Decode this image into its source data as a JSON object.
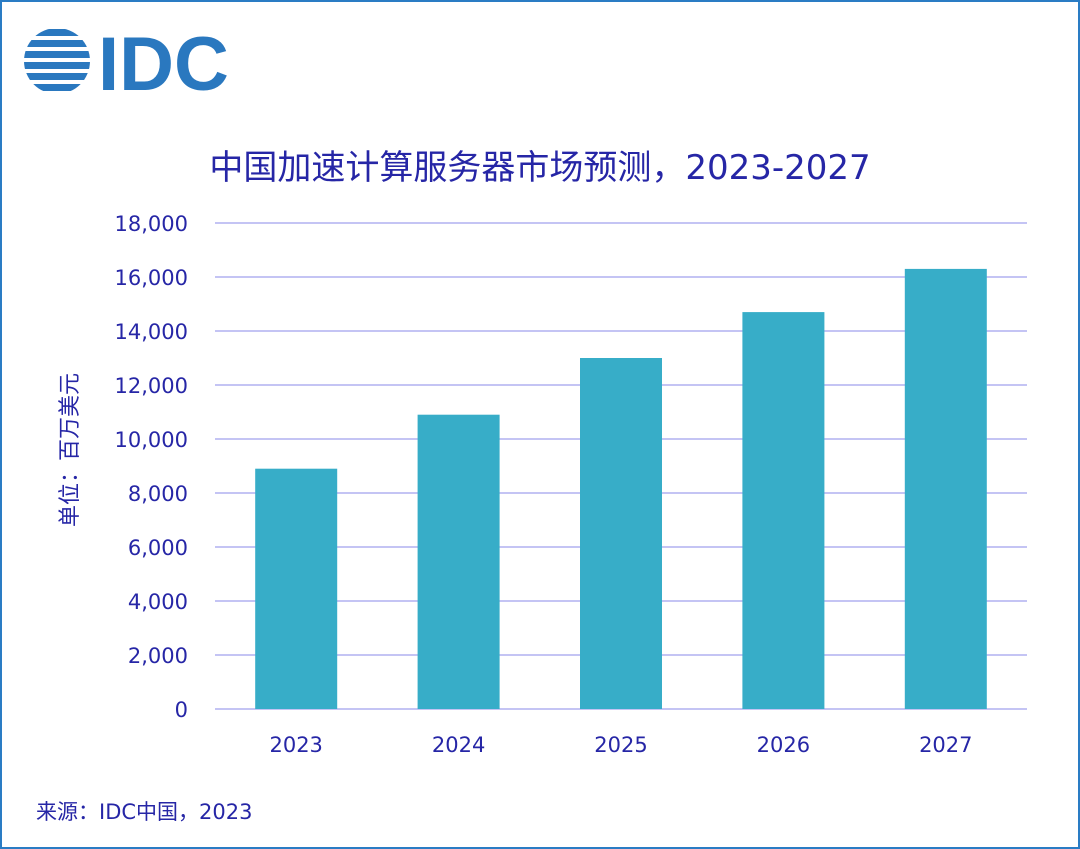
{
  "logo_text": "IDC",
  "colors": {
    "bar": "#37adc8",
    "grid": "#c4c4f4",
    "text": "#2626a6",
    "frame": "#2a7cc4",
    "logo": "#2a78bf"
  },
  "chart_data": {
    "type": "bar",
    "title": "中国加速计算服务器市场预测，2023-2027",
    "ylabel": "单位：百万美元",
    "xlabel": "",
    "categories": [
      "2023",
      "2024",
      "2025",
      "2026",
      "2027"
    ],
    "values": [
      8900,
      10900,
      13000,
      14700,
      16300
    ],
    "ylim": [
      0,
      18000
    ],
    "yticks": [
      "0",
      "2,000",
      "4,000",
      "6,000",
      "8,000",
      "10,000",
      "12,000",
      "14,000",
      "16,000",
      "18,000"
    ],
    "grid": true,
    "legend": "none"
  },
  "source": "来源：IDC中国，2023"
}
